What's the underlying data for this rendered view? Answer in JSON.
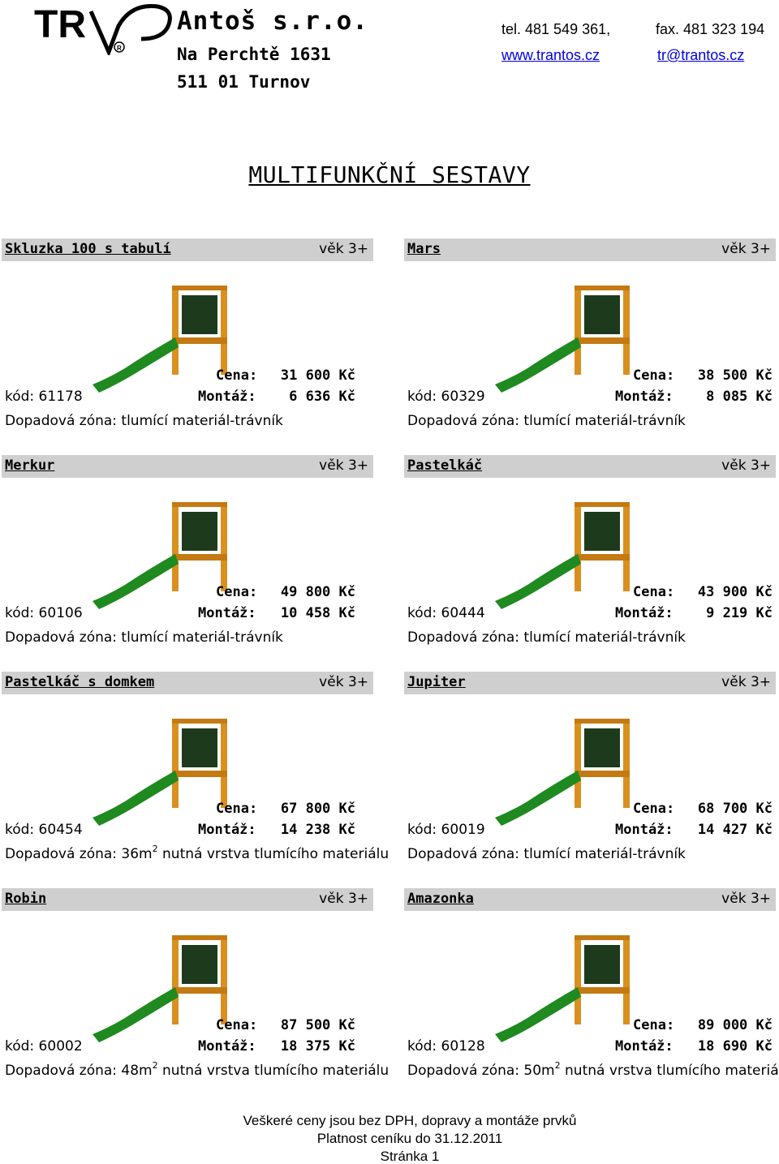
{
  "header": {
    "logo_text": "TR",
    "company_name": "Antoš s.r.o.",
    "street": "Na Perchtě 1631",
    "city": "511 01 Turnov",
    "tel": "tel. 481 549 361,",
    "fax": "fax. 481 323 194",
    "web": "www.trantos.cz",
    "email": "tr@trantos.cz"
  },
  "page_title": "MULTIFUNKČNÍ SESTAVY",
  "labels": {
    "price": "Cena:",
    "assembly": "Montáž:"
  },
  "products": [
    {
      "name": "Skluzka 100 s tabulí",
      "age": "věk 3+",
      "price": "31 600 Kč",
      "assembly": "6 636 Kč",
      "code": "kód: 61178",
      "zone": "Dopadová zóna: tlumící materiál-trávník",
      "zone_sup": "",
      "zone_rest": ""
    },
    {
      "name": "Mars",
      "age": "věk 3+",
      "price": "38 500 Kč",
      "assembly": "8 085 Kč",
      "code": "kód: 60329",
      "zone": "Dopadová zóna: tlumící materiál-trávník",
      "zone_sup": "",
      "zone_rest": ""
    },
    {
      "name": "Merkur",
      "age": "věk 3+",
      "price": "49 800 Kč",
      "assembly": "10 458 Kč",
      "code": "kód: 60106",
      "zone": "Dopadová zóna: tlumící materiál-trávník",
      "zone_sup": "",
      "zone_rest": ""
    },
    {
      "name": "Pastelkáč",
      "age": "věk 3+",
      "price": "43 900 Kč",
      "assembly": "9 219 Kč",
      "code": "kód: 60444",
      "zone": "Dopadová zóna: tlumící materiál-trávník",
      "zone_sup": "",
      "zone_rest": ""
    },
    {
      "name": "Pastelkáč s domkem",
      "age": "věk 3+",
      "price": "67 800 Kč",
      "assembly": "14 238 Kč",
      "code": "kód: 60454",
      "zone": "Dopadová zóna: 36m",
      "zone_sup": "2",
      "zone_rest": " nutná vrstva tlumícího materiálu"
    },
    {
      "name": "Jupiter",
      "age": "věk 3+",
      "price": "68 700 Kč",
      "assembly": "14 427 Kč",
      "code": "kód: 60019",
      "zone": "Dopadová zóna: tlumící materiál-trávník",
      "zone_sup": "",
      "zone_rest": ""
    },
    {
      "name": "Robin",
      "age": "věk 3+",
      "price": "87 500 Kč",
      "assembly": "18 375 Kč",
      "code": "kód: 60002",
      "zone": "Dopadová zóna: 48m",
      "zone_sup": "2",
      "zone_rest": " nutná vrstva tlumícího materiálu"
    },
    {
      "name": "Amazonka",
      "age": "věk 3+",
      "price": "89 000 Kč",
      "assembly": "18 690 Kč",
      "code": "kód: 60128",
      "zone": "Dopadová zóna: 50m",
      "zone_sup": "2",
      "zone_rest": " nutná vrstva tlumícího materiálu"
    }
  ],
  "footer": {
    "line1": "Veškeré ceny jsou bez DPH, dopravy a montáže prvků",
    "line2": "Platnost ceníku do 31.12.2011",
    "line3": "Stránka 1"
  },
  "colors": {
    "bar": "#cfcfcf",
    "link": "#0000ee",
    "slide": "#1f8a1f",
    "wood": "#d9901e"
  },
  "icons": [
    "company-logo-icon",
    "playground-illustration"
  ]
}
